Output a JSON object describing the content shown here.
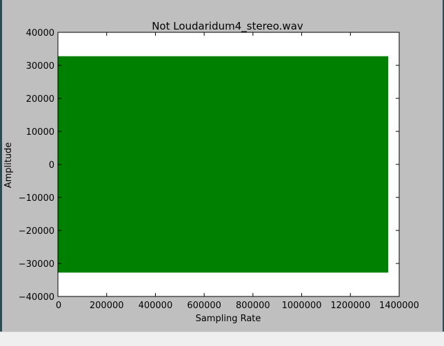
{
  "chart_data": {
    "type": "area",
    "title": "Not Loudaridum4_stereo.wav",
    "xlabel": "Sampling Rate",
    "ylabel": "Amplitude",
    "xlim": [
      0,
      1400000
    ],
    "ylim": [
      -40000,
      40000
    ],
    "xticks": [
      0,
      200000,
      400000,
      600000,
      800000,
      1000000,
      1200000,
      1400000
    ],
    "xtick_labels": [
      "0",
      "200000",
      "400000",
      "600000",
      "800000",
      "1000000",
      "1200000",
      "1400000"
    ],
    "yticks": [
      40000,
      30000,
      20000,
      10000,
      0,
      -10000,
      -20000,
      -30000,
      -40000
    ],
    "ytick_labels": [
      "40000",
      "30000",
      "20000",
      "10000",
      "0",
      "−10000",
      "−20000",
      "−30000",
      "−40000"
    ],
    "series": [
      {
        "color": "#008000",
        "x_range": [
          0,
          1355000
        ],
        "max": 32767,
        "min": -32768
      }
    ],
    "grid": false,
    "legend": "none"
  }
}
